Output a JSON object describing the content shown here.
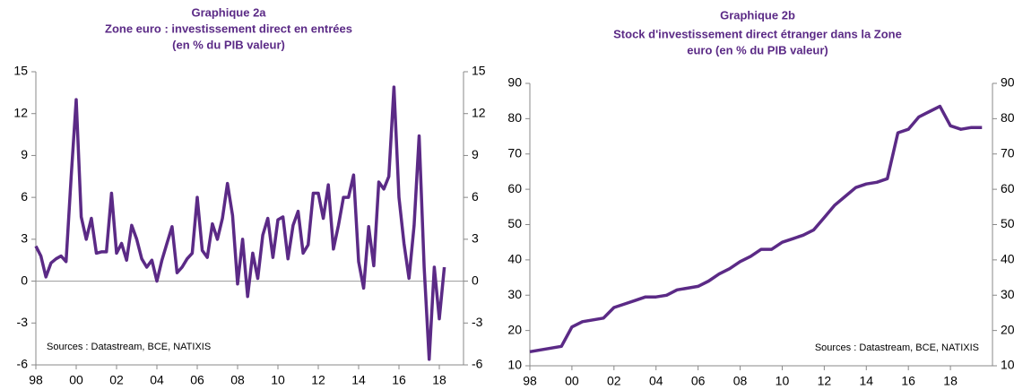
{
  "chart_data": [
    {
      "type": "line",
      "title": "Graphique 2a",
      "subtitle": [
        "Zone euro : investissement direct en entrées",
        "(en % du PIB valeur)"
      ],
      "annotation": "Sources : Datastream, BCE, NATIXIS",
      "x": [
        1998,
        1998.25,
        1998.5,
        1998.75,
        1999,
        1999.25,
        1999.5,
        1999.75,
        2000,
        2000.25,
        2000.5,
        2000.75,
        2001,
        2001.25,
        2001.5,
        2001.75,
        2002,
        2002.25,
        2002.5,
        2002.75,
        2003,
        2003.25,
        2003.5,
        2003.75,
        2004,
        2004.25,
        2004.5,
        2004.75,
        2005,
        2005.25,
        2005.5,
        2005.75,
        2006,
        2006.25,
        2006.5,
        2006.75,
        2007,
        2007.25,
        2007.5,
        2007.75,
        2008,
        2008.25,
        2008.5,
        2008.75,
        2009,
        2009.25,
        2009.5,
        2009.75,
        2010,
        2010.25,
        2010.5,
        2010.75,
        2011,
        2011.25,
        2011.5,
        2011.75,
        2012,
        2012.25,
        2012.5,
        2012.75,
        2013,
        2013.25,
        2013.5,
        2013.75,
        2014,
        2014.25,
        2014.5,
        2014.75,
        2015,
        2015.25,
        2015.5,
        2015.75,
        2016,
        2016.25,
        2016.5,
        2016.75,
        2017,
        2017.25,
        2017.5,
        2017.75,
        2018,
        2018.25
      ],
      "series": [
        {
          "color": "#5b2a86",
          "values": [
            2.5,
            1.8,
            0.3,
            1.3,
            1.6,
            1.8,
            1.4,
            7.5,
            13.0,
            4.6,
            3.0,
            4.5,
            2.0,
            2.1,
            2.1,
            6.3,
            2.0,
            2.7,
            1.5,
            4.0,
            3.0,
            1.6,
            1.0,
            1.5,
            0.0,
            1.5,
            2.7,
            3.9,
            0.6,
            1.0,
            1.6,
            2.0,
            6.0,
            2.2,
            1.7,
            4.1,
            3.0,
            4.5,
            7.0,
            4.7,
            -0.2,
            3.0,
            -1.1,
            2.0,
            0.2,
            3.3,
            4.5,
            1.7,
            4.4,
            4.6,
            1.6,
            4.0,
            5.0,
            2.0,
            2.6,
            6.3,
            6.3,
            4.5,
            6.9,
            2.3,
            4.0,
            6.0,
            6.0,
            7.6,
            1.4,
            -0.5,
            3.9,
            1.1,
            7.1,
            6.6,
            7.5,
            13.9,
            6.0,
            2.7,
            0.2,
            4.0,
            10.4,
            1.0,
            -5.6,
            1.0,
            -2.7,
            1.0
          ]
        }
      ],
      "xlim": [
        1998,
        2019.2
      ],
      "xticks": [
        {
          "value": 1998,
          "label": "98"
        },
        {
          "value": 2000,
          "label": "00"
        },
        {
          "value": 2002,
          "label": "02"
        },
        {
          "value": 2004,
          "label": "04"
        },
        {
          "value": 2006,
          "label": "06"
        },
        {
          "value": 2008,
          "label": "08"
        },
        {
          "value": 2010,
          "label": "10"
        },
        {
          "value": 2012,
          "label": "12"
        },
        {
          "value": 2014,
          "label": "14"
        },
        {
          "value": 2016,
          "label": "16"
        },
        {
          "value": 2018,
          "label": "18"
        }
      ],
      "ylim": [
        -6,
        15
      ],
      "yticks": [
        -6,
        -3,
        0,
        3,
        6,
        9,
        12,
        15
      ],
      "zero_line": true,
      "annotation_corner": "bottom-left"
    },
    {
      "type": "line",
      "title": "Graphique 2b",
      "subtitle": [
        "Stock d'investissement direct étranger dans la Zone",
        "euro (en % du PIB valeur)"
      ],
      "annotation": "Sources : Datastream, BCE, NATIXIS",
      "x": [
        1998,
        1998.5,
        1999,
        1999.5,
        2000,
        2000.5,
        2001,
        2001.5,
        2002,
        2002.5,
        2003,
        2003.5,
        2004,
        2004.5,
        2005,
        2005.5,
        2006,
        2006.5,
        2007,
        2007.5,
        2008,
        2008.5,
        2009,
        2009.5,
        2010,
        2010.5,
        2011,
        2011.5,
        2012,
        2012.5,
        2013,
        2013.5,
        2014,
        2014.5,
        2015,
        2015.5,
        2016,
        2016.5,
        2017,
        2017.5,
        2018,
        2018.5,
        2019,
        2019.5
      ],
      "series": [
        {
          "color": "#5b2a86",
          "values": [
            14,
            14.5,
            15,
            15.5,
            21,
            22.5,
            23,
            23.5,
            26.5,
            27.5,
            28.5,
            29.5,
            29.5,
            30,
            31.5,
            32,
            32.5,
            34,
            36,
            37.5,
            39.5,
            41,
            43,
            43,
            45,
            46,
            47,
            48.5,
            52,
            55.5,
            58,
            60.5,
            61.5,
            62,
            63,
            76,
            77,
            80.5,
            82,
            83.5,
            78,
            77,
            77.5,
            77.5
          ]
        }
      ],
      "xlim": [
        1998,
        2020
      ],
      "xticks": [
        {
          "value": 1998,
          "label": "98"
        },
        {
          "value": 2000,
          "label": "00"
        },
        {
          "value": 2002,
          "label": "02"
        },
        {
          "value": 2004,
          "label": "04"
        },
        {
          "value": 2006,
          "label": "06"
        },
        {
          "value": 2008,
          "label": "08"
        },
        {
          "value": 2010,
          "label": "10"
        },
        {
          "value": 2012,
          "label": "12"
        },
        {
          "value": 2014,
          "label": "14"
        },
        {
          "value": 2016,
          "label": "16"
        },
        {
          "value": 2018,
          "label": "18"
        }
      ],
      "ylim": [
        10,
        90
      ],
      "yticks": [
        10,
        20,
        30,
        40,
        50,
        60,
        70,
        80,
        90
      ],
      "zero_line": false,
      "annotation_corner": "bottom-right"
    }
  ]
}
